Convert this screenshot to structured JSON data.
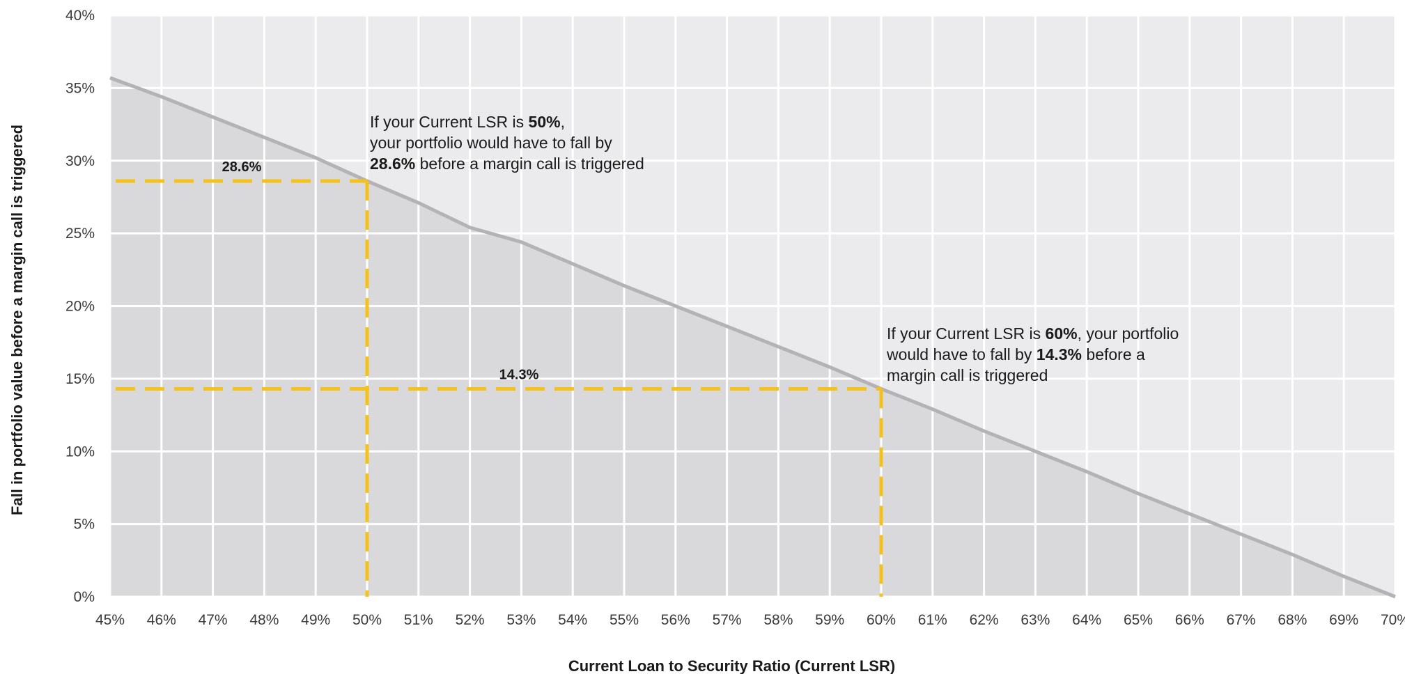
{
  "chart_data": {
    "type": "area",
    "title": "",
    "xlabel": "Current Loan to Security Ratio (Current LSR)",
    "ylabel": "Fall in portfolio value before a margin call is triggered",
    "x_ticks": [
      "45%",
      "46%",
      "47%",
      "48%",
      "49%",
      "50%",
      "51%",
      "52%",
      "53%",
      "54%",
      "55%",
      "56%",
      "57%",
      "58%",
      "59%",
      "60%",
      "61%",
      "62%",
      "63%",
      "64%",
      "65%",
      "66%",
      "67%",
      "68%",
      "69%",
      "70%"
    ],
    "y_ticks": [
      "0%",
      "5%",
      "10%",
      "15%",
      "20%",
      "25%",
      "30%",
      "35%",
      "40%"
    ],
    "xlim": [
      45,
      70
    ],
    "ylim": [
      0,
      40
    ],
    "grid": true,
    "series": [
      {
        "x": [
          45,
          46,
          47,
          48,
          49,
          50,
          51,
          52,
          53,
          54,
          55,
          56,
          57,
          58,
          59,
          60,
          61,
          62,
          63,
          64,
          65,
          66,
          67,
          68,
          69,
          70
        ],
        "values": [
          35.7,
          34.4,
          33.0,
          31.6,
          30.2,
          28.6,
          27.1,
          25.4,
          24.4,
          22.9,
          21.4,
          20.0,
          18.6,
          17.2,
          15.8,
          14.3,
          12.9,
          11.4,
          10.0,
          8.6,
          7.1,
          5.7,
          4.3,
          2.9,
          1.4,
          0.0
        ]
      }
    ],
    "markers": [
      {
        "x": 50,
        "y": 28.6,
        "label": "28.6%"
      },
      {
        "x": 60,
        "y": 14.3,
        "label": "14.3%"
      }
    ],
    "annotations": [
      {
        "lines": [
          [
            {
              "t": "If your Current LSR is ",
              "b": false
            },
            {
              "t": "50%",
              "b": true
            },
            {
              "t": ",",
              "b": false
            }
          ],
          [
            {
              "t": "your portfolio would have to fall by",
              "b": false
            }
          ],
          [
            {
              "t": "28.6%",
              "b": true
            },
            {
              "t": " before a margin call is triggered",
              "b": false
            }
          ]
        ]
      },
      {
        "lines": [
          [
            {
              "t": "If your Current LSR is ",
              "b": false
            },
            {
              "t": "60%",
              "b": true
            },
            {
              "t": ", your portfolio",
              "b": false
            }
          ],
          [
            {
              "t": "would have to fall by ",
              "b": false
            },
            {
              "t": "14.3%",
              "b": true
            },
            {
              "t": " before a",
              "b": false
            }
          ],
          [
            {
              "t": "margin call is triggered",
              "b": false
            }
          ]
        ]
      }
    ],
    "colors": {
      "background": "#ebebed",
      "area": "#d9d9db",
      "line": "#b3b3b5",
      "grid": "#ffffff",
      "marker": "#f5c21b"
    }
  }
}
